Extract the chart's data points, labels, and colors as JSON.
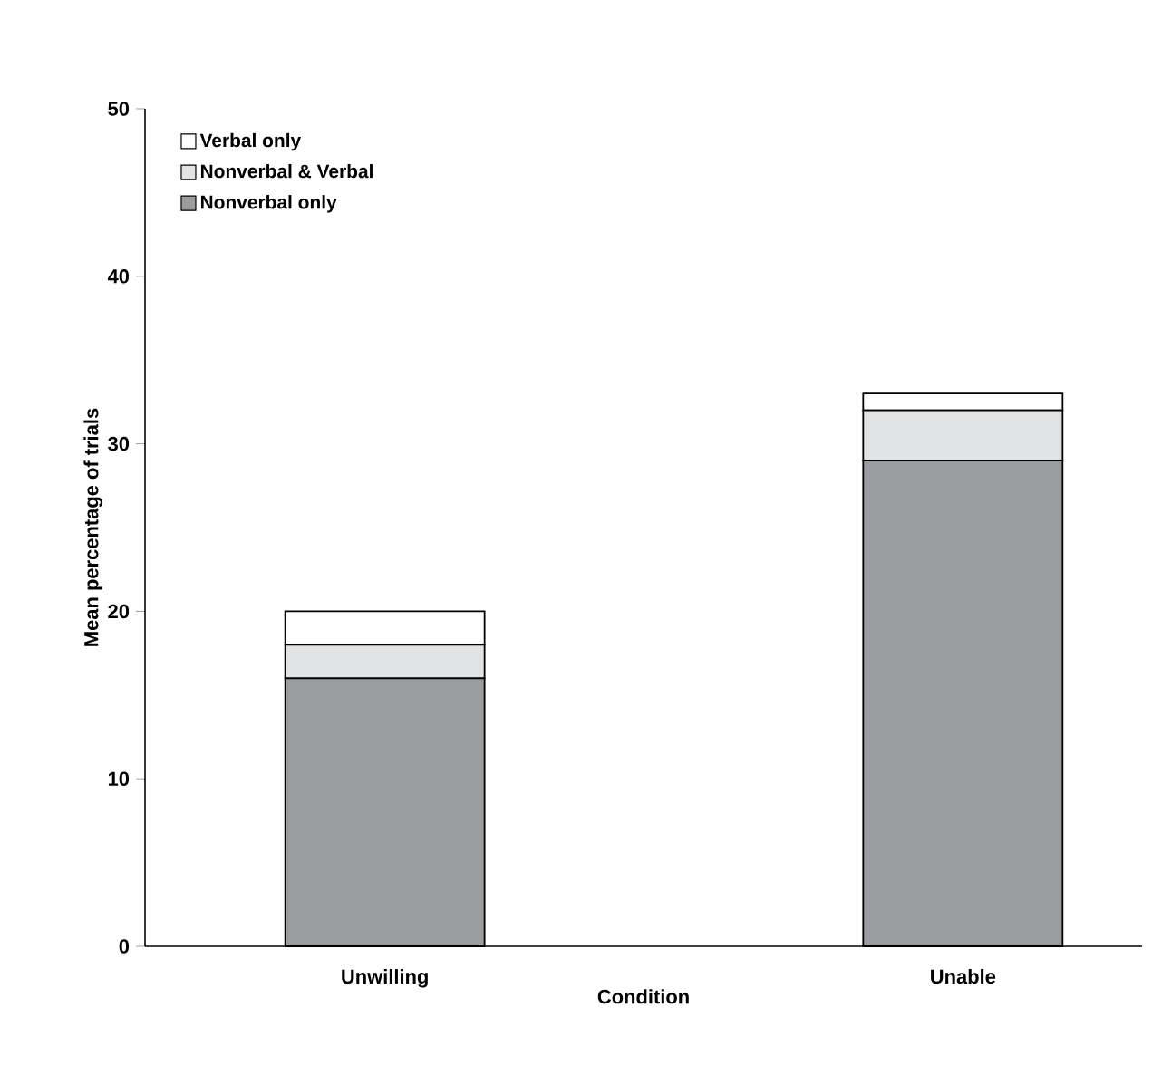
{
  "chart_data": {
    "type": "bar",
    "stacked": true,
    "xlabel": "Condition",
    "ylabel": "Mean percentage of trials",
    "categories": [
      "Unwilling",
      "Unable"
    ],
    "series": [
      {
        "name": "Nonverbal only",
        "color": "#9b9ca0",
        "values": [
          16,
          29
        ]
      },
      {
        "name": "Nonverbal & Verbal",
        "color": "#e2e3e4",
        "values": [
          2,
          3
        ]
      },
      {
        "name": "Verbal only",
        "color": "#ffffff",
        "values": [
          2,
          1
        ]
      }
    ],
    "ylim": [
      0,
      50
    ],
    "yticks": [
      0,
      10,
      20,
      30,
      40,
      50
    ],
    "grid": false,
    "legend": "top left"
  }
}
